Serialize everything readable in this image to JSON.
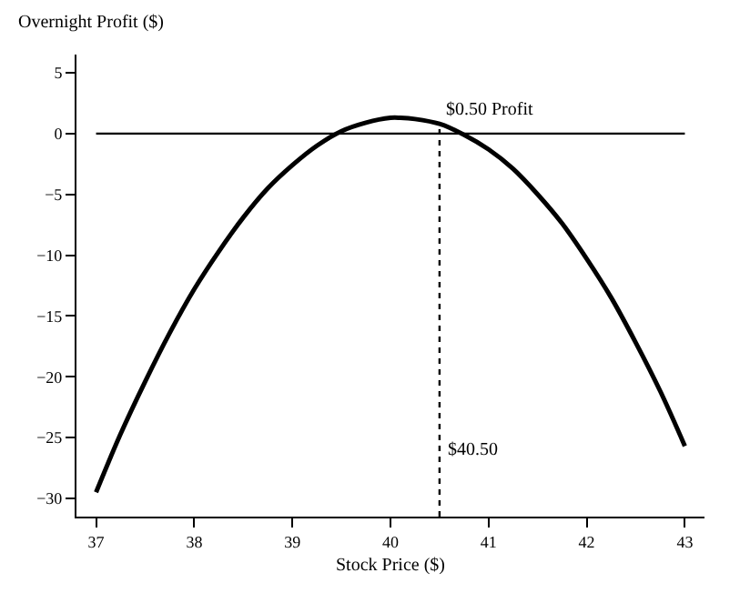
{
  "chart_data": {
    "type": "line",
    "xlabel": "Stock Price ($)",
    "ylabel": "Overnight Profit ($)",
    "x": [
      37,
      37.25,
      37.5,
      37.75,
      38,
      38.25,
      38.5,
      38.75,
      39,
      39.25,
      39.5,
      39.75,
      40,
      40.1,
      40.25,
      40.5,
      40.75,
      41,
      41.25,
      41.5,
      41.75,
      42,
      42.25,
      42.5,
      42.75,
      43
    ],
    "series": [
      {
        "color": "#000000",
        "values": [
          -29.5,
          -24.7,
          -20.4,
          -16.4,
          -12.8,
          -9.7,
          -6.9,
          -4.5,
          -2.6,
          -1.0,
          0.2,
          0.9,
          1.3,
          1.3,
          1.2,
          0.8,
          -0.1,
          -1.3,
          -2.9,
          -5.0,
          -7.4,
          -10.3,
          -13.5,
          -17.2,
          -21.2,
          -25.7
        ]
      }
    ],
    "xlim": [
      36.8,
      43.2
    ],
    "xticks": [
      37,
      38,
      39,
      40,
      41,
      42,
      43
    ],
    "ylim": [
      -31.5,
      6.5
    ],
    "yticks": [
      -30,
      -25,
      -20,
      -15,
      -10,
      -5,
      0,
      5
    ],
    "ref_lines": [
      {
        "axis": "y",
        "value": 0,
        "label": null,
        "color": "#000000",
        "line_style": "solid"
      },
      {
        "axis": "x",
        "value": 40.5,
        "label": "$40.50",
        "color": "#000000",
        "line_style": "dotted"
      }
    ],
    "annotations": [
      {
        "text": "$0.50 Profit",
        "x": 40.5,
        "y": 0.5
      }
    ],
    "marker": "none",
    "line_style": "solid"
  }
}
